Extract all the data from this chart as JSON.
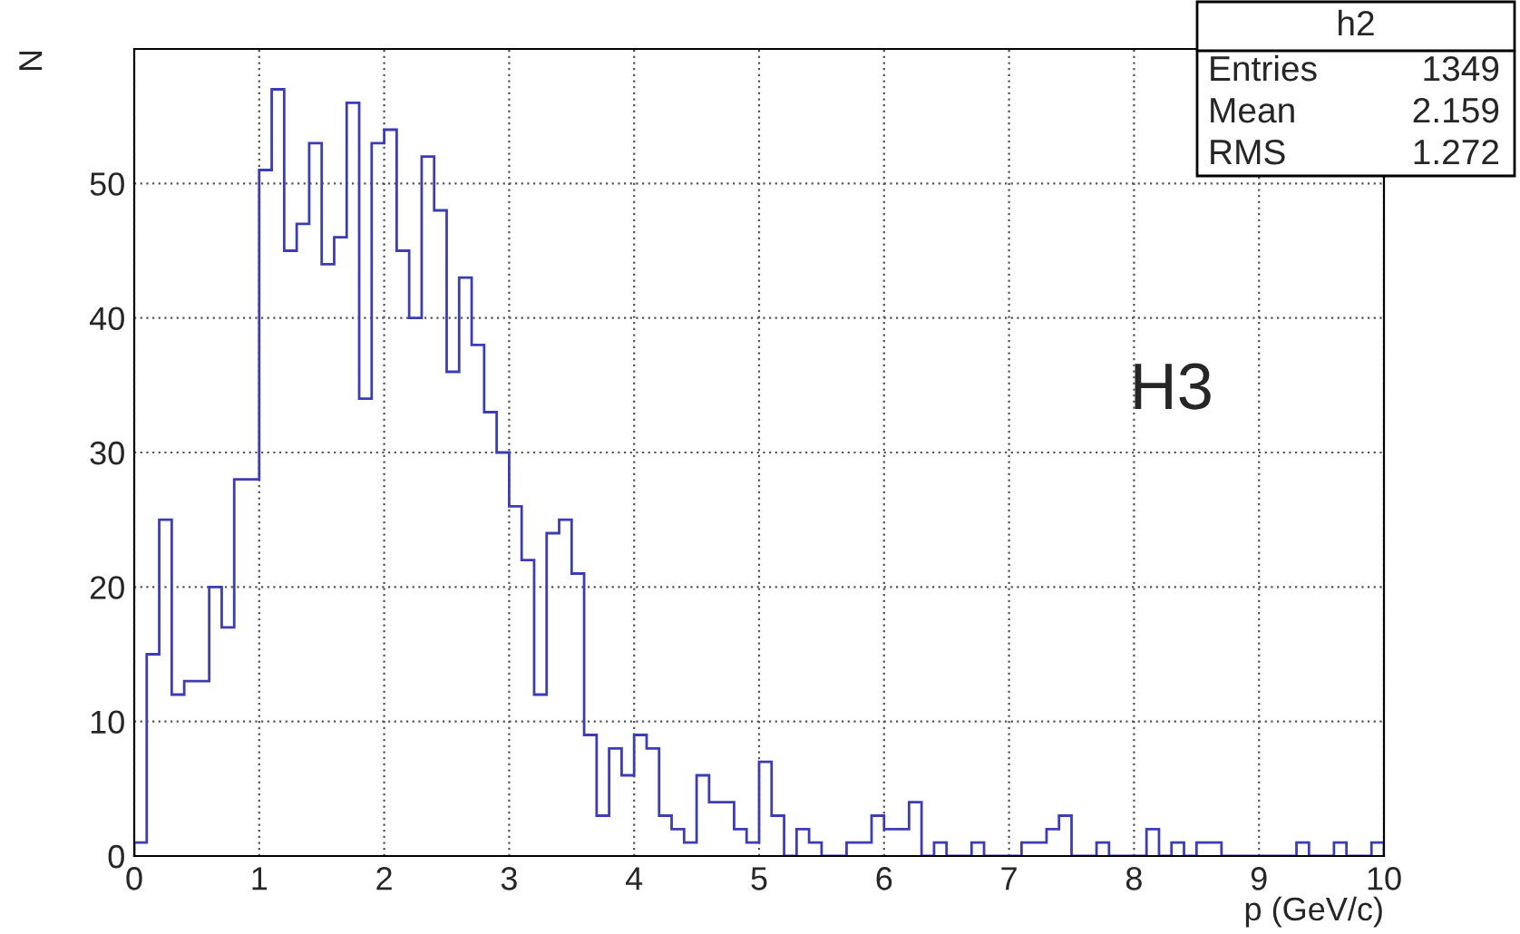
{
  "chart_data": {
    "type": "histogram",
    "xlabel": "p (GeV/c)",
    "ylabel": "N",
    "bins": [
      0,
      0.1,
      0.2,
      0.3,
      0.4,
      0.5,
      0.6,
      0.7,
      0.8,
      0.9,
      1,
      1.1,
      1.2,
      1.3,
      1.4,
      1.5,
      1.6,
      1.7,
      1.8,
      1.9,
      2,
      2.1,
      2.2,
      2.3,
      2.4,
      2.5,
      2.6,
      2.7,
      2.8,
      2.9,
      3,
      3.1,
      3.2,
      3.3,
      3.4,
      3.5,
      3.6,
      3.7,
      3.8,
      3.9,
      4,
      4.1,
      4.2,
      4.3,
      4.4,
      4.5,
      4.6,
      4.7,
      4.8,
      4.9,
      5,
      5.1,
      5.2,
      5.3,
      5.4,
      5.5,
      5.6,
      5.7,
      5.8,
      5.9,
      6,
      6.1,
      6.2,
      6.3,
      6.4,
      6.5,
      6.6,
      6.7,
      6.8,
      6.9,
      7,
      7.1,
      7.2,
      7.3,
      7.4,
      7.5,
      7.6,
      7.7,
      7.8,
      7.9,
      8,
      8.1,
      8.2,
      8.3,
      8.4,
      8.5,
      8.6,
      8.7,
      8.8,
      8.9,
      9,
      9.1,
      9.2,
      9.3,
      9.4,
      9.5,
      9.6,
      9.7,
      9.8,
      9.9,
      10
    ],
    "values": [
      1,
      15,
      25,
      12,
      13,
      13,
      20,
      17,
      28,
      28,
      51,
      57,
      45,
      47,
      53,
      44,
      46,
      56,
      34,
      53,
      54,
      45,
      40,
      52,
      48,
      36,
      43,
      38,
      33,
      30,
      26,
      22,
      12,
      24,
      25,
      21,
      9,
      3,
      8,
      6,
      9,
      8,
      3,
      2,
      1,
      6,
      4,
      4,
      2,
      1,
      7,
      3,
      0,
      2,
      1,
      0,
      0,
      1,
      1,
      3,
      2,
      2,
      4,
      0,
      1,
      0,
      0,
      1,
      0,
      0,
      0,
      1,
      1,
      2,
      3,
      0,
      0,
      1,
      0,
      0,
      0,
      2,
      0,
      1,
      0,
      1,
      1,
      0,
      0,
      0,
      0,
      0,
      0,
      1,
      0,
      0,
      1,
      0,
      0,
      1
    ],
    "color": "#3c3cb4",
    "xlim": [
      0,
      10
    ],
    "xticks": [
      0,
      1,
      2,
      3,
      4,
      5,
      6,
      7,
      8,
      9,
      10
    ],
    "ylim": [
      0,
      60
    ],
    "yticks": [
      0,
      10,
      20,
      30,
      40,
      50
    ],
    "grid": true,
    "annotations": [
      "H3",
      "h2",
      "Entries",
      "1349",
      "Mean",
      "2.159",
      "RMS",
      "1.272"
    ]
  }
}
